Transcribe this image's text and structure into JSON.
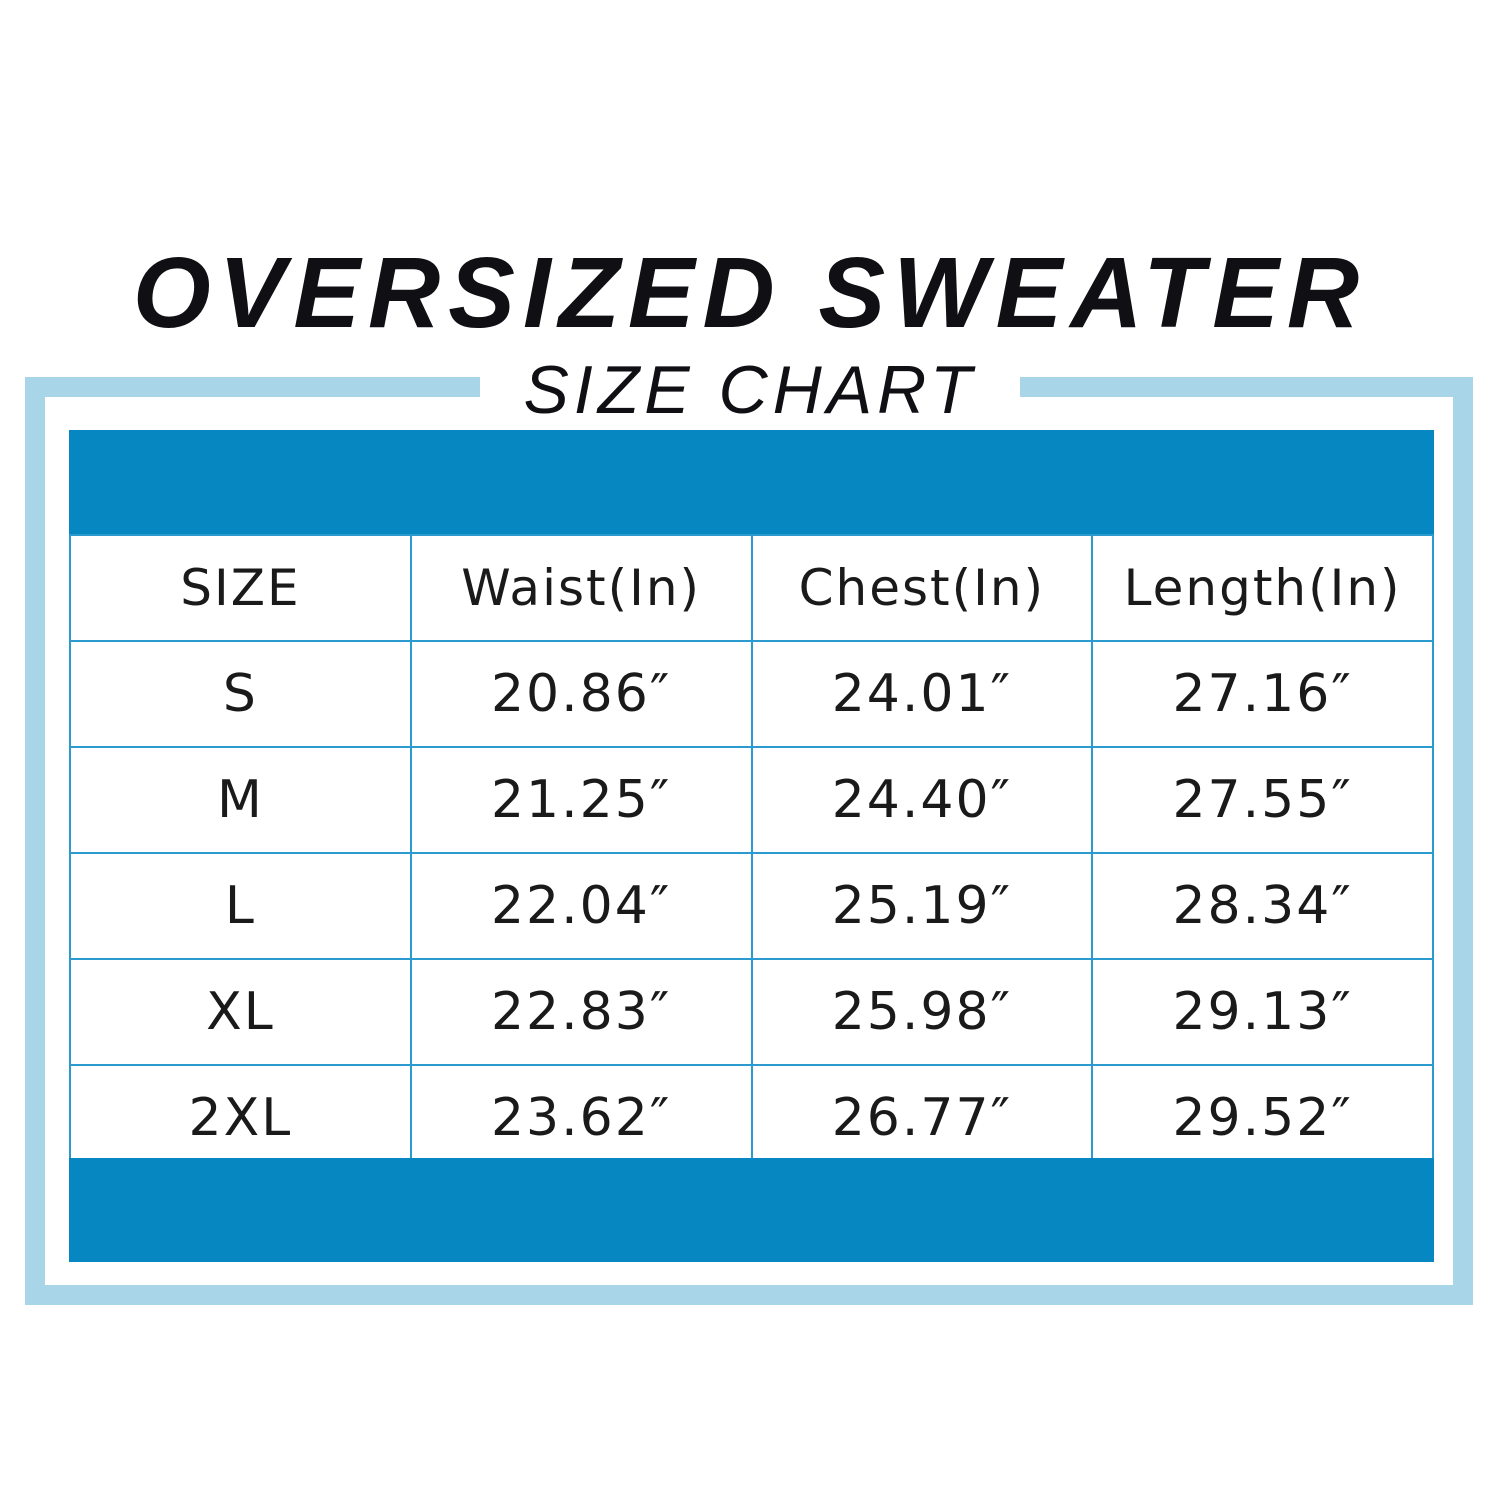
{
  "title": "OVERSIZED SWEATER",
  "subtitle": "SIZE CHART",
  "colors": {
    "band": "#0787c2",
    "frame": "#a8d6e8",
    "grid": "#2b9bcf"
  },
  "table": {
    "headers": [
      "SIZE",
      "Waist(In)",
      "Chest(In)",
      "Length(In)"
    ],
    "rows": [
      [
        "S",
        "20.86″",
        "24.01″",
        "27.16″"
      ],
      [
        "M",
        "21.25″",
        "24.40″",
        "27.55″"
      ],
      [
        "L",
        "22.04″",
        "25.19″",
        "28.34″"
      ],
      [
        "XL",
        "22.83″",
        "25.98″",
        "29.13″"
      ],
      [
        "2XL",
        "23.62″",
        "26.77″",
        "29.52″"
      ]
    ]
  }
}
